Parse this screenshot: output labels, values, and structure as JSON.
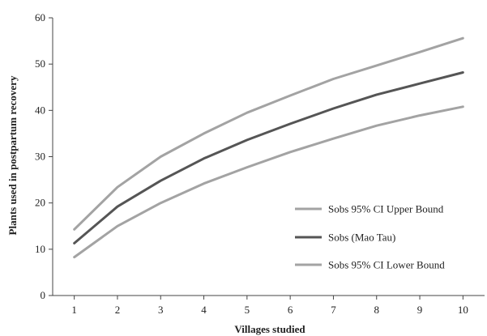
{
  "chart_data": {
    "type": "line",
    "title": "",
    "xlabel": "Villages studied",
    "ylabel": "Plants used in postpartum recovery",
    "x": [
      1,
      2,
      3,
      4,
      5,
      6,
      7,
      8,
      9,
      10
    ],
    "xlim": [
      0.5,
      10.5
    ],
    "ylim": [
      0,
      60
    ],
    "yticks": [
      0,
      10,
      20,
      30,
      40,
      50,
      60
    ],
    "grid": false,
    "legend_position": "bottom-right",
    "series": [
      {
        "name": "Sobs 95% CI Upper Bound",
        "color": "#a3a3a3",
        "values": [
          14.3,
          23.4,
          30.0,
          35.0,
          39.5,
          43.2,
          46.8,
          49.7,
          52.6,
          55.6
        ]
      },
      {
        "name": "Sobs (Mao Tau)",
        "color": "#555555",
        "values": [
          11.3,
          19.2,
          24.8,
          29.6,
          33.6,
          37.1,
          40.4,
          43.4,
          45.8,
          48.2
        ]
      },
      {
        "name": "Sobs 95% CI Lower Bound",
        "color": "#a3a3a3",
        "values": [
          8.3,
          15.0,
          20.0,
          24.2,
          27.7,
          31.0,
          33.9,
          36.7,
          38.9,
          40.8
        ]
      }
    ]
  }
}
